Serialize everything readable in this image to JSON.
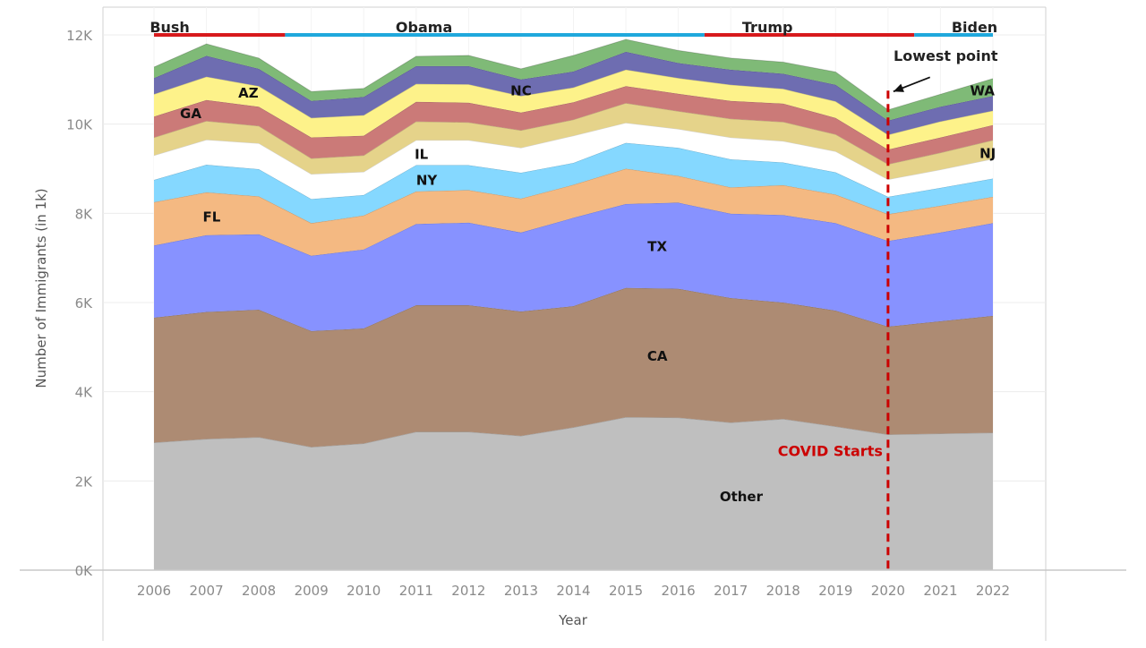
{
  "chart_data": {
    "type": "area",
    "stacked": true,
    "x": [
      2006,
      2007,
      2008,
      2009,
      2010,
      2011,
      2012,
      2013,
      2014,
      2015,
      2016,
      2017,
      2018,
      2019,
      2020,
      2021,
      2022
    ],
    "xlabel": "Year",
    "ylabel": "Number of Immigrants (in 1k)",
    "ylim": [
      0,
      12000
    ],
    "yticks": [
      0,
      2000,
      4000,
      6000,
      8000,
      10000,
      12000
    ],
    "ytick_labels": [
      "0K",
      "2K",
      "4K",
      "6K",
      "8K",
      "10K",
      "12K"
    ],
    "grid": true,
    "series": [
      {
        "name": "Other",
        "color": "#bfbfbf",
        "values": [
          2860,
          2940,
          2980,
          2760,
          2840,
          3100,
          3100,
          3010,
          3200,
          3430,
          3420,
          3310,
          3390,
          3220,
          3040,
          3060,
          3080
        ]
      },
      {
        "name": "CA",
        "color": "#ad8b73",
        "values": [
          2800,
          2850,
          2860,
          2600,
          2580,
          2840,
          2840,
          2790,
          2720,
          2900,
          2890,
          2790,
          2610,
          2600,
          2420,
          2520,
          2620
        ]
      },
      {
        "name": "TX",
        "color": "#8792ff",
        "values": [
          1620,
          1720,
          1690,
          1690,
          1770,
          1820,
          1850,
          1770,
          1980,
          1880,
          1930,
          1890,
          1960,
          1960,
          1920,
          1990,
          2080
        ]
      },
      {
        "name": "FL",
        "color": "#f4b982",
        "values": [
          970,
          960,
          850,
          730,
          760,
          730,
          730,
          760,
          740,
          790,
          600,
          590,
          670,
          640,
          600,
          600,
          590
        ]
      },
      {
        "name": "NY",
        "color": "#85d8ff",
        "values": [
          500,
          620,
          610,
          540,
          460,
          590,
          560,
          580,
          490,
          580,
          630,
          630,
          510,
          500,
          390,
          400,
          410
        ]
      },
      {
        "name": "IL",
        "color": "#ffffff",
        "values": [
          550,
          560,
          580,
          560,
          520,
          560,
          560,
          560,
          610,
          450,
          420,
          490,
          480,
          470,
          390,
          410,
          440
        ]
      },
      {
        "name": "GA",
        "color": "#e5d38a",
        "values": [
          400,
          420,
          390,
          350,
          370,
          420,
          400,
          390,
          360,
          440,
          400,
          420,
          430,
          380,
          340,
          380,
          420
        ]
      },
      {
        "name": "NJ",
        "color": "#cb7a78",
        "values": [
          470,
          470,
          430,
          470,
          440,
          440,
          440,
          400,
          390,
          380,
          390,
          400,
          410,
          370,
          330,
          340,
          340
        ]
      },
      {
        "name": "AZ",
        "color": "#fdf28a",
        "values": [
          500,
          520,
          460,
          440,
          460,
          400,
          410,
          370,
          330,
          370,
          350,
          360,
          330,
          370,
          330,
          360,
          320
        ]
      },
      {
        "name": "NC",
        "color": "#6e6db1",
        "values": [
          360,
          470,
          390,
          380,
          410,
          400,
          410,
          370,
          360,
          400,
          340,
          340,
          340,
          370,
          320,
          330,
          330
        ]
      },
      {
        "name": "WA",
        "color": "#7fba77",
        "values": [
          250,
          270,
          240,
          210,
          190,
          220,
          240,
          240,
          360,
          280,
          280,
          260,
          260,
          290,
          240,
          280,
          390
        ]
      }
    ],
    "state_labels": [
      {
        "text": "Other",
        "x": 2017.2,
        "y": 1650
      },
      {
        "text": "CA",
        "x": 2015.6,
        "y": 4800
      },
      {
        "text": "TX",
        "x": 2015.6,
        "y": 7250
      },
      {
        "text": "FL",
        "x": 2007.1,
        "y": 7920
      },
      {
        "text": "NY",
        "x": 2011.2,
        "y": 8740
      },
      {
        "text": "IL",
        "x": 2011.1,
        "y": 9320
      },
      {
        "text": "GA",
        "x": 2006.7,
        "y": 10230
      },
      {
        "text": "NJ",
        "x": 2021.9,
        "y": 9340
      },
      {
        "text": "AZ",
        "x": 2007.8,
        "y": 10700
      },
      {
        "text": "NC",
        "x": 2013.0,
        "y": 10750
      },
      {
        "text": "WA",
        "x": 2021.8,
        "y": 10750
      }
    ],
    "presidents": [
      {
        "name": "Bush",
        "from": 2006,
        "to": 2008.5,
        "color": "#d7191c",
        "label_x": 2006.3
      },
      {
        "name": "Obama",
        "from": 2008.5,
        "to": 2016.5,
        "color": "#1fa8dc",
        "label_x": 2011.15
      },
      {
        "name": "Trump",
        "from": 2016.5,
        "to": 2020.5,
        "color": "#d7191c",
        "label_x": 2017.7
      },
      {
        "name": "Biden",
        "from": 2020.5,
        "to": 2022,
        "color": "#1fa8dc",
        "label_x": 2021.65
      }
    ],
    "president_line_value": 12000,
    "annotations": [
      {
        "text": "COVID Starts",
        "x": 2020,
        "color": "#cc0000",
        "label_y": 2660,
        "type": "vline"
      },
      {
        "text": "Lowest point",
        "x": 2020,
        "y": 10650,
        "label_x": 2021.1,
        "label_y": 11420,
        "type": "arrow"
      }
    ]
  }
}
